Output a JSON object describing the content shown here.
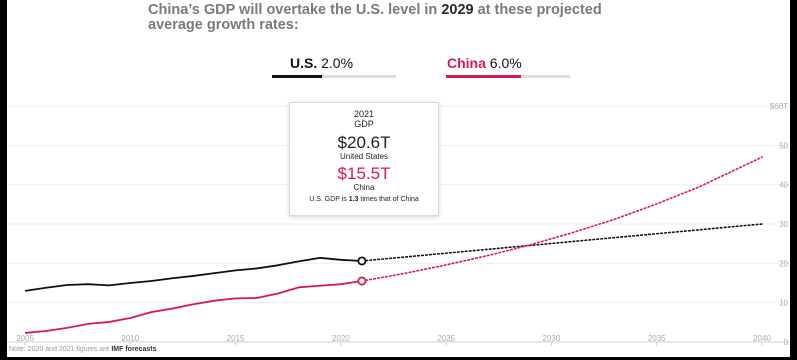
{
  "header": {
    "title_part1": "China’s GDP will overtake the U.S. level in ",
    "title_year": "2029",
    "title_part2": " at these projected average growth rates:"
  },
  "growth_rates": {
    "us_label": "U.S.",
    "us_rate": "2.0%",
    "china_label": "China",
    "china_rate": "6.0%",
    "us_color": "#111111",
    "china_color": "#d61c4e",
    "slider_track_color": "#dddddd"
  },
  "tooltip": {
    "year": "2021",
    "metric": "GDP",
    "us_value": "$20.6T",
    "us_label": "United States",
    "china_value": "$15.5T",
    "china_label": "China",
    "note_pre": "U.S. GDP is ",
    "note_ratio": "1.3",
    "note_post": " times that of China"
  },
  "footnote": {
    "text": "Note: 2020 and 2021 figures are ",
    "emphasis": "IMF forecasts"
  },
  "chart_data": {
    "type": "line",
    "xlim": [
      2005,
      2041
    ],
    "ylim": [
      0,
      60
    ],
    "x_ticks": [
      2005,
      2010,
      2015,
      2020,
      2025,
      2030,
      2035,
      2040
    ],
    "x_tick_labels": [
      "2005",
      "2010",
      "2015",
      "2020",
      "2025",
      "2030",
      "2035",
      "2040"
    ],
    "y_ticks": [
      0,
      10,
      20,
      30,
      40,
      50,
      60
    ],
    "y_tick_labels": [
      "0",
      "10",
      "20",
      "30",
      "40",
      "50",
      "$60T"
    ],
    "grid": "horizontal",
    "series": [
      {
        "name": "U.S.",
        "color": "#111111",
        "historical": {
          "x": [
            2005,
            2006,
            2007,
            2008,
            2009,
            2010,
            2011,
            2012,
            2013,
            2014,
            2015,
            2016,
            2017,
            2018,
            2019,
            2020,
            2021
          ],
          "y": [
            13.0,
            13.8,
            14.5,
            14.7,
            14.4,
            15.0,
            15.5,
            16.2,
            16.8,
            17.5,
            18.2,
            18.7,
            19.5,
            20.5,
            21.4,
            20.9,
            20.6
          ]
        },
        "projection": {
          "x": [
            2021,
            2040
          ],
          "y": [
            20.6,
            30.0
          ]
        }
      },
      {
        "name": "China",
        "color": "#d61c4e",
        "historical": {
          "x": [
            2005,
            2006,
            2007,
            2008,
            2009,
            2010,
            2011,
            2012,
            2013,
            2014,
            2015,
            2016,
            2017,
            2018,
            2019,
            2020,
            2021
          ],
          "y": [
            2.3,
            2.8,
            3.6,
            4.6,
            5.1,
            6.1,
            7.6,
            8.5,
            9.6,
            10.5,
            11.1,
            11.2,
            12.3,
            13.9,
            14.3,
            14.7,
            15.5
          ]
        },
        "projection": {
          "x": [
            2021,
            2023,
            2025,
            2027,
            2029,
            2031,
            2033,
            2035,
            2037,
            2040
          ],
          "y": [
            15.5,
            17.4,
            19.6,
            22.0,
            24.7,
            27.8,
            31.2,
            35.1,
            39.4,
            47.0
          ]
        }
      }
    ]
  }
}
